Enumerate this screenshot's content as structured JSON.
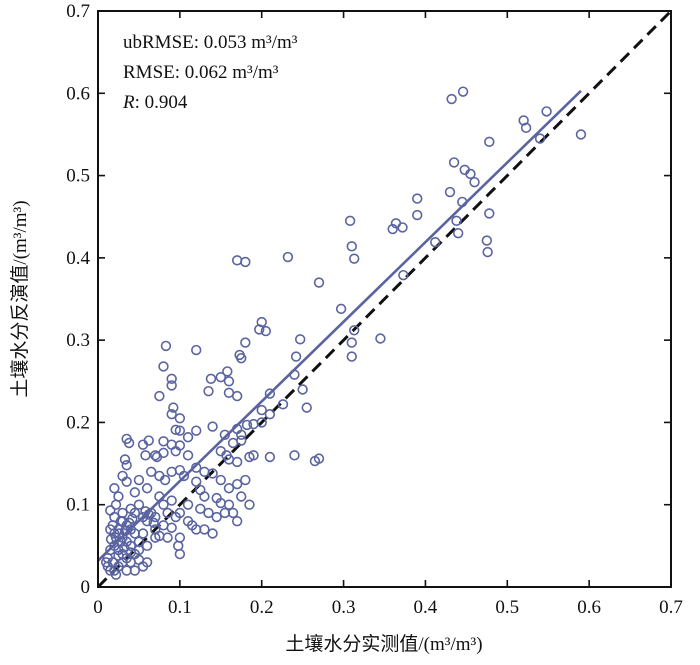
{
  "chart_data": {
    "type": "scatter",
    "xlabel": "土壤水分实测值/(m³/m³)",
    "ylabel": "土壤水分反演值/(m³/m³)",
    "xlim": [
      0,
      0.7
    ],
    "ylim": [
      0,
      0.7
    ],
    "x_ticks": [
      "0",
      "0.1",
      "0.2",
      "0.3",
      "0.4",
      "0.5",
      "0.6",
      "0.7"
    ],
    "y_ticks": [
      "0",
      "0.1",
      "0.2",
      "0.3",
      "0.4",
      "0.5",
      "0.6",
      "0.7"
    ],
    "grid": false,
    "stats": {
      "ubrmse": "ubRMSE: 0.053 m³/m³",
      "rmse": "RMSE: 0.062 m³/m³",
      "r_label": "R",
      "r_value": ": 0.904"
    },
    "colors": {
      "points": "#5a64a0",
      "fit_line": "#5a64a0",
      "one_to_one": "#111111",
      "axes": "#111111"
    },
    "fit_line": {
      "x": [
        0.0,
        0.59
      ],
      "y": [
        0.032,
        0.603
      ]
    },
    "one_to_one_line": {
      "x": [
        0,
        0.7
      ],
      "y": [
        0,
        0.7
      ],
      "style": "dashed"
    },
    "series": [
      {
        "marker": "open-circle",
        "points": [
          [
            0.432,
            0.593
          ],
          [
            0.446,
            0.602
          ],
          [
            0.52,
            0.567
          ],
          [
            0.548,
            0.578
          ],
          [
            0.523,
            0.558
          ],
          [
            0.54,
            0.545
          ],
          [
            0.59,
            0.55
          ],
          [
            0.478,
            0.541
          ],
          [
            0.435,
            0.516
          ],
          [
            0.448,
            0.507
          ],
          [
            0.455,
            0.502
          ],
          [
            0.46,
            0.492
          ],
          [
            0.43,
            0.48
          ],
          [
            0.445,
            0.468
          ],
          [
            0.39,
            0.472
          ],
          [
            0.308,
            0.445
          ],
          [
            0.36,
            0.435
          ],
          [
            0.364,
            0.442
          ],
          [
            0.372,
            0.437
          ],
          [
            0.39,
            0.452
          ],
          [
            0.438,
            0.445
          ],
          [
            0.412,
            0.419
          ],
          [
            0.44,
            0.43
          ],
          [
            0.478,
            0.454
          ],
          [
            0.475,
            0.421
          ],
          [
            0.476,
            0.407
          ],
          [
            0.31,
            0.414
          ],
          [
            0.313,
            0.399
          ],
          [
            0.232,
            0.401
          ],
          [
            0.17,
            0.397
          ],
          [
            0.18,
            0.395
          ],
          [
            0.373,
            0.379
          ],
          [
            0.27,
            0.37
          ],
          [
            0.297,
            0.338
          ],
          [
            0.313,
            0.312
          ],
          [
            0.345,
            0.302
          ],
          [
            0.31,
            0.297
          ],
          [
            0.31,
            0.28
          ],
          [
            0.2,
            0.322
          ],
          [
            0.197,
            0.313
          ],
          [
            0.205,
            0.311
          ],
          [
            0.247,
            0.301
          ],
          [
            0.173,
            0.282
          ],
          [
            0.175,
            0.278
          ],
          [
            0.18,
            0.297
          ],
          [
            0.083,
            0.293
          ],
          [
            0.12,
            0.288
          ],
          [
            0.08,
            0.268
          ],
          [
            0.158,
            0.262
          ],
          [
            0.15,
            0.255
          ],
          [
            0.138,
            0.253
          ],
          [
            0.16,
            0.25
          ],
          [
            0.242,
            0.28
          ],
          [
            0.24,
            0.258
          ],
          [
            0.09,
            0.253
          ],
          [
            0.09,
            0.245
          ],
          [
            0.135,
            0.238
          ],
          [
            0.17,
            0.232
          ],
          [
            0.16,
            0.236
          ],
          [
            0.21,
            0.235
          ],
          [
            0.25,
            0.24
          ],
          [
            0.255,
            0.218
          ],
          [
            0.226,
            0.222
          ],
          [
            0.075,
            0.232
          ],
          [
            0.092,
            0.218
          ],
          [
            0.09,
            0.21
          ],
          [
            0.1,
            0.205
          ],
          [
            0.14,
            0.195
          ],
          [
            0.2,
            0.215
          ],
          [
            0.21,
            0.21
          ],
          [
            0.182,
            0.197
          ],
          [
            0.17,
            0.192
          ],
          [
            0.155,
            0.185
          ],
          [
            0.19,
            0.198
          ],
          [
            0.2,
            0.2
          ],
          [
            0.175,
            0.185
          ],
          [
            0.175,
            0.178
          ],
          [
            0.165,
            0.175
          ],
          [
            0.12,
            0.19
          ],
          [
            0.095,
            0.191
          ],
          [
            0.1,
            0.19
          ],
          [
            0.11,
            0.182
          ],
          [
            0.1,
            0.172
          ],
          [
            0.09,
            0.173
          ],
          [
            0.08,
            0.177
          ],
          [
            0.08,
            0.163
          ],
          [
            0.035,
            0.18
          ],
          [
            0.038,
            0.175
          ],
          [
            0.055,
            0.173
          ],
          [
            0.062,
            0.178
          ],
          [
            0.058,
            0.16
          ],
          [
            0.07,
            0.16
          ],
          [
            0.072,
            0.158
          ],
          [
            0.095,
            0.165
          ],
          [
            0.11,
            0.16
          ],
          [
            0.15,
            0.165
          ],
          [
            0.157,
            0.16
          ],
          [
            0.16,
            0.155
          ],
          [
            0.17,
            0.152
          ],
          [
            0.185,
            0.158
          ],
          [
            0.19,
            0.16
          ],
          [
            0.21,
            0.158
          ],
          [
            0.24,
            0.16
          ],
          [
            0.27,
            0.156
          ],
          [
            0.265,
            0.153
          ],
          [
            0.033,
            0.155
          ],
          [
            0.035,
            0.148
          ],
          [
            0.03,
            0.135
          ],
          [
            0.035,
            0.128
          ],
          [
            0.045,
            0.115
          ],
          [
            0.05,
            0.13
          ],
          [
            0.065,
            0.14
          ],
          [
            0.075,
            0.135
          ],
          [
            0.082,
            0.13
          ],
          [
            0.09,
            0.14
          ],
          [
            0.1,
            0.142
          ],
          [
            0.105,
            0.135
          ],
          [
            0.12,
            0.145
          ],
          [
            0.13,
            0.14
          ],
          [
            0.14,
            0.138
          ],
          [
            0.15,
            0.13
          ],
          [
            0.16,
            0.12
          ],
          [
            0.17,
            0.125
          ],
          [
            0.18,
            0.13
          ],
          [
            0.12,
            0.128
          ],
          [
            0.125,
            0.118
          ],
          [
            0.13,
            0.11
          ],
          [
            0.145,
            0.108
          ],
          [
            0.15,
            0.102
          ],
          [
            0.16,
            0.1
          ],
          [
            0.175,
            0.11
          ],
          [
            0.185,
            0.1
          ],
          [
            0.09,
            0.105
          ],
          [
            0.08,
            0.1
          ],
          [
            0.075,
            0.11
          ],
          [
            0.06,
            0.12
          ],
          [
            0.05,
            0.1
          ],
          [
            0.045,
            0.09
          ],
          [
            0.04,
            0.095
          ],
          [
            0.025,
            0.11
          ],
          [
            0.02,
            0.12
          ],
          [
            0.022,
            0.1
          ],
          [
            0.015,
            0.093
          ],
          [
            0.03,
            0.08
          ],
          [
            0.035,
            0.075
          ],
          [
            0.04,
            0.07
          ],
          [
            0.045,
            0.065
          ],
          [
            0.055,
            0.085
          ],
          [
            0.06,
            0.08
          ],
          [
            0.065,
            0.09
          ],
          [
            0.07,
            0.085
          ],
          [
            0.062,
            0.088
          ],
          [
            0.058,
            0.092
          ],
          [
            0.068,
            0.078
          ],
          [
            0.085,
            0.09
          ],
          [
            0.095,
            0.085
          ],
          [
            0.11,
            0.08
          ],
          [
            0.115,
            0.075
          ],
          [
            0.12,
            0.07
          ],
          [
            0.13,
            0.07
          ],
          [
            0.14,
            0.065
          ],
          [
            0.1,
            0.06
          ],
          [
            0.098,
            0.05
          ],
          [
            0.1,
            0.04
          ],
          [
            0.085,
            0.06
          ],
          [
            0.07,
            0.06
          ],
          [
            0.06,
            0.05
          ],
          [
            0.05,
            0.045
          ],
          [
            0.045,
            0.04
          ],
          [
            0.06,
            0.03
          ],
          [
            0.055,
            0.025
          ],
          [
            0.035,
            0.035
          ],
          [
            0.03,
            0.03
          ],
          [
            0.025,
            0.025
          ],
          [
            0.02,
            0.02
          ],
          [
            0.022,
            0.015
          ],
          [
            0.015,
            0.02
          ],
          [
            0.018,
            0.03
          ],
          [
            0.012,
            0.035
          ],
          [
            0.015,
            0.045
          ],
          [
            0.02,
            0.05
          ],
          [
            0.025,
            0.045
          ],
          [
            0.028,
            0.055
          ],
          [
            0.03,
            0.06
          ],
          [
            0.035,
            0.055
          ],
          [
            0.04,
            0.05
          ],
          [
            0.02,
            0.065
          ],
          [
            0.015,
            0.07
          ],
          [
            0.018,
            0.075
          ],
          [
            0.025,
            0.07
          ],
          [
            0.028,
            0.08
          ],
          [
            0.03,
            0.09
          ],
          [
            0.02,
            0.085
          ],
          [
            0.01,
            0.03
          ],
          [
            0.012,
            0.025
          ],
          [
            0.035,
            0.02
          ],
          [
            0.04,
            0.03
          ],
          [
            0.05,
            0.055
          ],
          [
            0.055,
            0.065
          ],
          [
            0.07,
            0.07
          ],
          [
            0.075,
            0.062
          ],
          [
            0.08,
            0.075
          ],
          [
            0.09,
            0.072
          ],
          [
            0.1,
            0.09
          ],
          [
            0.11,
            0.1
          ],
          [
            0.125,
            0.095
          ],
          [
            0.135,
            0.09
          ],
          [
            0.145,
            0.085
          ],
          [
            0.155,
            0.09
          ],
          [
            0.165,
            0.09
          ],
          [
            0.17,
            0.08
          ],
          [
            0.03,
            0.04
          ],
          [
            0.025,
            0.038
          ],
          [
            0.032,
            0.048
          ],
          [
            0.04,
            0.042
          ],
          [
            0.045,
            0.02
          ],
          [
            0.05,
            0.033
          ],
          [
            0.016,
            0.058
          ],
          [
            0.022,
            0.06
          ],
          [
            0.026,
            0.065
          ],
          [
            0.033,
            0.068
          ],
          [
            0.038,
            0.078
          ],
          [
            0.042,
            0.083
          ]
        ]
      }
    ]
  }
}
